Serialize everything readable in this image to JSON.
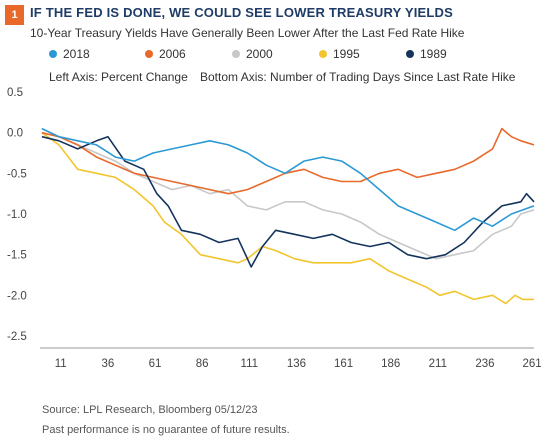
{
  "header": {
    "badge": "1",
    "title": "IF THE FED IS DONE, WE COULD SEE LOWER TREASURY YIELDS",
    "subtitle": "10-Year Treasury Yields Have Generally Been Lower After the Last Fed Rate Hike"
  },
  "notes": {
    "left_axis": "Left Axis: Percent Change",
    "bottom_axis": "Bottom Axis: Number of Trading Days Since Last Rate Hike"
  },
  "footer": {
    "source": "Source: LPL Research, Bloomberg  05/12/23",
    "disclaimer": "Past performance is no guarantee of future results."
  },
  "chart_data": {
    "type": "line",
    "title": "10-Year Treasury Yields Have Generally Been Lower After the Last Fed Rate Hike",
    "xlabel": "Number of Trading Days Since Last Rate Hike",
    "ylabel": "Percent Change",
    "xlim": [
      0,
      262
    ],
    "ylim": [
      -2.5,
      0.5
    ],
    "x_ticks": [
      11,
      36,
      61,
      86,
      111,
      136,
      161,
      186,
      211,
      236,
      261
    ],
    "y_ticks": [
      0.5,
      0.0,
      -0.5,
      -1.0,
      -1.5,
      -2.0,
      -2.5
    ],
    "y_tick_labels": [
      "0.5",
      "0.0",
      "-0.5",
      "-1.0",
      "-1.5",
      "-2.0",
      "-2.5"
    ],
    "grid": false,
    "legend_position": "top",
    "series": [
      {
        "name": "1989",
        "color": "#14345e",
        "x": [
          1,
          10,
          20,
          30,
          36,
          45,
          55,
          62,
          68,
          75,
          85,
          95,
          105,
          112,
          118,
          125,
          135,
          145,
          155,
          165,
          175,
          185,
          195,
          205,
          215,
          225,
          235,
          245,
          255,
          258,
          262
        ],
        "y": [
          -0.05,
          -0.1,
          -0.2,
          -0.1,
          -0.05,
          -0.35,
          -0.45,
          -0.75,
          -0.9,
          -1.2,
          -1.25,
          -1.35,
          -1.3,
          -1.65,
          -1.4,
          -1.2,
          -1.25,
          -1.3,
          -1.25,
          -1.35,
          -1.4,
          -1.35,
          -1.5,
          -1.55,
          -1.5,
          -1.35,
          -1.1,
          -0.9,
          -0.85,
          -0.75,
          -0.85
        ]
      },
      {
        "name": "1995",
        "color": "#f2c52e",
        "x": [
          1,
          10,
          20,
          30,
          40,
          50,
          60,
          66,
          75,
          85,
          95,
          105,
          110,
          118,
          125,
          135,
          145,
          155,
          165,
          175,
          185,
          195,
          205,
          212,
          220,
          230,
          240,
          247,
          252,
          256,
          262
        ],
        "y": [
          0.0,
          -0.15,
          -0.45,
          -0.5,
          -0.55,
          -0.7,
          -0.9,
          -1.1,
          -1.25,
          -1.5,
          -1.55,
          -1.6,
          -1.55,
          -1.4,
          -1.45,
          -1.55,
          -1.6,
          -1.6,
          -1.6,
          -1.55,
          -1.7,
          -1.8,
          -1.9,
          -2.0,
          -1.95,
          -2.05,
          -2.0,
          -2.1,
          -2.0,
          -2.05,
          -2.05
        ]
      },
      {
        "name": "2000",
        "color": "#c8c8c8",
        "x": [
          1,
          10,
          20,
          30,
          40,
          50,
          60,
          70,
          80,
          90,
          100,
          110,
          120,
          130,
          140,
          150,
          160,
          170,
          180,
          190,
          200,
          210,
          220,
          230,
          240,
          250,
          255,
          262
        ],
        "y": [
          0.05,
          -0.05,
          -0.15,
          -0.25,
          -0.35,
          -0.5,
          -0.6,
          -0.7,
          -0.65,
          -0.75,
          -0.7,
          -0.9,
          -0.95,
          -0.85,
          -0.85,
          -0.95,
          -1.0,
          -1.1,
          -1.25,
          -1.35,
          -1.45,
          -1.55,
          -1.5,
          -1.45,
          -1.25,
          -1.15,
          -1.0,
          -0.95
        ]
      },
      {
        "name": "2006",
        "color": "#e8692a",
        "x": [
          1,
          10,
          20,
          30,
          40,
          50,
          60,
          70,
          80,
          90,
          100,
          110,
          120,
          130,
          140,
          150,
          160,
          170,
          180,
          190,
          200,
          210,
          220,
          230,
          240,
          245,
          250,
          255,
          262
        ],
        "y": [
          0.0,
          -0.05,
          -0.15,
          -0.3,
          -0.4,
          -0.5,
          -0.55,
          -0.6,
          -0.65,
          -0.7,
          -0.75,
          -0.7,
          -0.6,
          -0.5,
          -0.45,
          -0.55,
          -0.6,
          -0.6,
          -0.5,
          -0.45,
          -0.55,
          -0.5,
          -0.45,
          -0.35,
          -0.2,
          0.05,
          -0.05,
          -0.1,
          -0.15
        ]
      },
      {
        "name": "2018",
        "color": "#2b9ad4",
        "x": [
          1,
          10,
          20,
          30,
          40,
          50,
          60,
          70,
          80,
          90,
          100,
          110,
          120,
          130,
          140,
          150,
          160,
          170,
          180,
          190,
          200,
          210,
          220,
          230,
          240,
          250,
          262
        ],
        "y": [
          0.05,
          -0.05,
          -0.1,
          -0.15,
          -0.3,
          -0.35,
          -0.25,
          -0.2,
          -0.15,
          -0.1,
          -0.15,
          -0.25,
          -0.4,
          -0.5,
          -0.35,
          -0.3,
          -0.35,
          -0.5,
          -0.7,
          -0.9,
          -1.0,
          -1.1,
          -1.2,
          -1.05,
          -1.15,
          -1.0,
          -0.9
        ]
      }
    ]
  }
}
